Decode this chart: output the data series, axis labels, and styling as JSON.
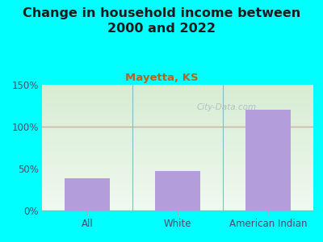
{
  "title": "Change in household income between\n2000 and 2022",
  "subtitle": "Mayetta, KS",
  "categories": [
    "All",
    "White",
    "American Indian"
  ],
  "values": [
    38,
    47,
    120
  ],
  "bar_color": "#b39ddb",
  "title_fontsize": 11.5,
  "subtitle_fontsize": 9.5,
  "subtitle_color": "#b5651d",
  "outer_bg": "#00ffff",
  "plot_bg_top": "#d6ecd2",
  "plot_bg_bottom": "#f0f8f0",
  "tick_label_color": "#4a4a6a",
  "ylim": [
    0,
    150
  ],
  "yticks": [
    0,
    50,
    100,
    150
  ],
  "ytick_labels": [
    "0%",
    "50%",
    "100%",
    "150%"
  ],
  "hline_color": "#e8a0a0",
  "watermark": "City-Data.com",
  "watermark_color": "#aab8c2",
  "title_color": "#1a1a1a"
}
